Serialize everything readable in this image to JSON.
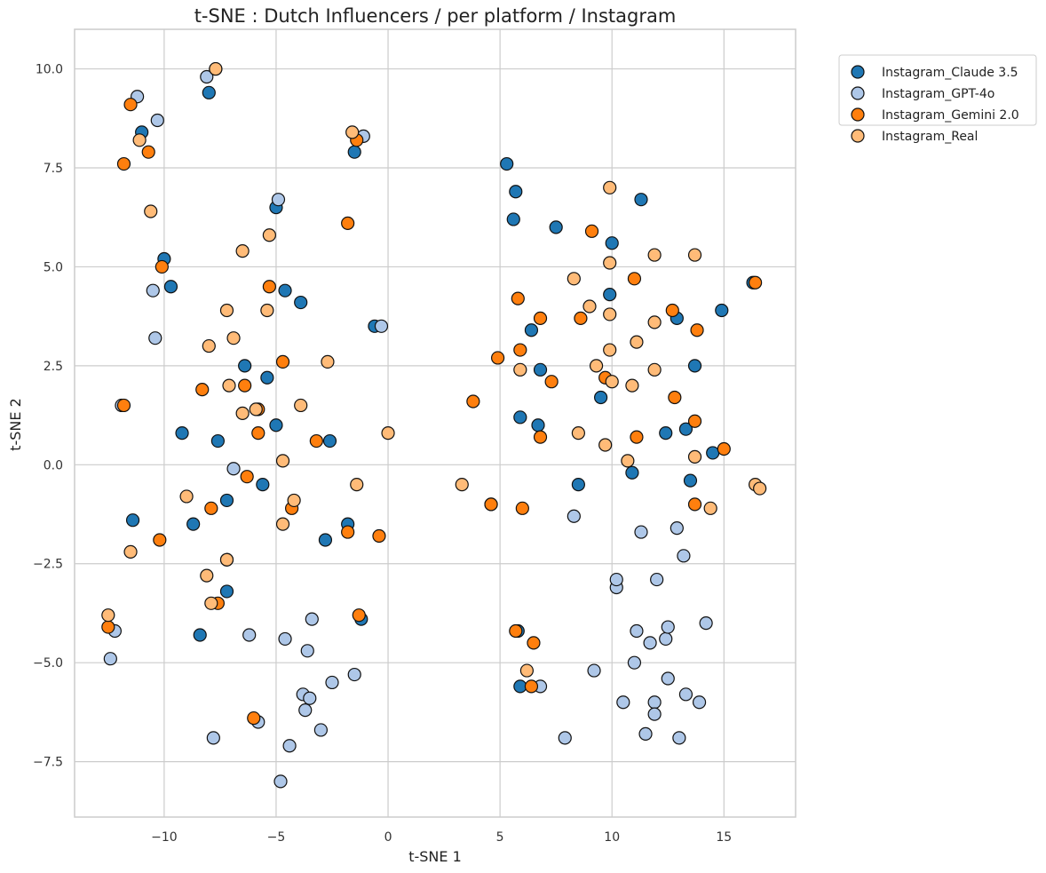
{
  "chart_data": {
    "type": "scatter",
    "title": "t-SNE : Dutch Influencers / per platform / Instagram",
    "xlabel": "t-SNE 1",
    "ylabel": "t-SNE 2",
    "xlim": [
      -14,
      18.2
    ],
    "ylim": [
      -8.9,
      11.0
    ],
    "xticks": [
      -10,
      -5,
      0,
      5,
      10,
      15
    ],
    "xtick_labels": [
      "−10",
      "−5",
      "0",
      "5",
      "10",
      "15"
    ],
    "yticks": [
      -7.5,
      -5,
      -2.5,
      0,
      2.5,
      5,
      7.5,
      10
    ],
    "ytick_labels": [
      "−7.5",
      "−5.0",
      "−2.5",
      "0.0",
      "2.5",
      "5.0",
      "7.5",
      "10.0"
    ],
    "grid": true,
    "legend_position": "outside-top-right",
    "series": [
      {
        "name": "Instagram_Claude 3.5",
        "color": "#1f77b4",
        "points": [
          [
            -8.0,
            9.4
          ],
          [
            -11.0,
            8.4
          ],
          [
            -1.5,
            7.9
          ],
          [
            -5.0,
            6.5
          ],
          [
            -10.0,
            5.2
          ],
          [
            -9.7,
            4.5
          ],
          [
            -4.6,
            4.4
          ],
          [
            -3.9,
            4.1
          ],
          [
            -0.6,
            3.5
          ],
          [
            -6.4,
            2.5
          ],
          [
            -5.4,
            2.2
          ],
          [
            -5.0,
            1.0
          ],
          [
            -9.2,
            0.8
          ],
          [
            -7.6,
            0.6
          ],
          [
            -2.6,
            0.6
          ],
          [
            -5.6,
            -0.5
          ],
          [
            -7.2,
            -0.9
          ],
          [
            -11.4,
            -1.4
          ],
          [
            -8.7,
            -1.5
          ],
          [
            -1.8,
            -1.5
          ],
          [
            -2.8,
            -1.9
          ],
          [
            -7.2,
            -3.2
          ],
          [
            -8.4,
            -4.3
          ],
          [
            -1.2,
            -3.9
          ],
          [
            5.3,
            7.6
          ],
          [
            5.7,
            6.9
          ],
          [
            11.3,
            6.7
          ],
          [
            5.6,
            6.2
          ],
          [
            7.5,
            6.0
          ],
          [
            10.0,
            5.6
          ],
          [
            16.3,
            4.6
          ],
          [
            9.9,
            4.3
          ],
          [
            14.9,
            3.9
          ],
          [
            12.9,
            3.7
          ],
          [
            6.4,
            3.4
          ],
          [
            13.7,
            2.5
          ],
          [
            6.8,
            2.4
          ],
          [
            9.5,
            1.7
          ],
          [
            5.9,
            1.2
          ],
          [
            6.7,
            1.0
          ],
          [
            13.3,
            0.9
          ],
          [
            12.4,
            0.8
          ],
          [
            14.5,
            0.3
          ],
          [
            10.9,
            -0.2
          ],
          [
            8.5,
            -0.5
          ],
          [
            13.5,
            -0.4
          ],
          [
            4.6,
            -1.0
          ],
          [
            5.8,
            -4.2
          ],
          [
            5.9,
            -5.6
          ]
        ]
      },
      {
        "name": "Instagram_GPT-4o",
        "color": "#aec7e8",
        "points": [
          [
            -8.1,
            9.8
          ],
          [
            -11.2,
            9.3
          ],
          [
            -10.3,
            8.7
          ],
          [
            -1.1,
            8.3
          ],
          [
            -4.9,
            6.7
          ],
          [
            -10.5,
            4.4
          ],
          [
            -10.4,
            3.2
          ],
          [
            -0.3,
            3.5
          ],
          [
            -11.9,
            1.5
          ],
          [
            -6.9,
            -0.1
          ],
          [
            -12.2,
            -4.2
          ],
          [
            -12.4,
            -4.9
          ],
          [
            -6.2,
            -4.3
          ],
          [
            -4.6,
            -4.4
          ],
          [
            -3.4,
            -3.9
          ],
          [
            -3.6,
            -4.7
          ],
          [
            -2.5,
            -5.5
          ],
          [
            -1.5,
            -5.3
          ],
          [
            -3.8,
            -5.8
          ],
          [
            -3.5,
            -5.9
          ],
          [
            -3.7,
            -6.2
          ],
          [
            -5.8,
            -6.5
          ],
          [
            -3.0,
            -6.7
          ],
          [
            -7.8,
            -6.9
          ],
          [
            -4.4,
            -7.1
          ],
          [
            -4.8,
            -8.0
          ],
          [
            8.3,
            -1.3
          ],
          [
            11.3,
            -1.7
          ],
          [
            12.9,
            -1.6
          ],
          [
            10.2,
            -3.1
          ],
          [
            10.2,
            -2.9
          ],
          [
            12.0,
            -2.9
          ],
          [
            13.2,
            -2.3
          ],
          [
            11.1,
            -4.2
          ],
          [
            11.7,
            -4.5
          ],
          [
            12.4,
            -4.4
          ],
          [
            12.5,
            -4.1
          ],
          [
            14.2,
            -4.0
          ],
          [
            9.2,
            -5.2
          ],
          [
            11.0,
            -5.0
          ],
          [
            12.5,
            -5.4
          ],
          [
            6.8,
            -5.6
          ],
          [
            10.5,
            -6.0
          ],
          [
            11.9,
            -6.0
          ],
          [
            13.3,
            -5.8
          ],
          [
            13.9,
            -6.0
          ],
          [
            11.9,
            -6.3
          ],
          [
            11.5,
            -6.8
          ],
          [
            7.9,
            -6.9
          ],
          [
            13.0,
            -6.9
          ]
        ]
      },
      {
        "name": "Instagram_Gemini 2.0",
        "color": "#ff7f0e",
        "points": [
          [
            -7.7,
            10.0
          ],
          [
            -11.5,
            9.1
          ],
          [
            -1.4,
            8.2
          ],
          [
            -11.8,
            7.6
          ],
          [
            -10.7,
            7.9
          ],
          [
            -1.8,
            6.1
          ],
          [
            -10.1,
            5.0
          ],
          [
            -5.3,
            4.5
          ],
          [
            -4.7,
            2.6
          ],
          [
            -8.3,
            1.9
          ],
          [
            -6.4,
            2.0
          ],
          [
            -5.8,
            1.4
          ],
          [
            -11.8,
            1.5
          ],
          [
            -5.8,
            0.8
          ],
          [
            -3.2,
            0.6
          ],
          [
            -6.3,
            -0.3
          ],
          [
            -7.9,
            -1.1
          ],
          [
            -4.3,
            -1.1
          ],
          [
            -10.2,
            -1.9
          ],
          [
            -1.8,
            -1.7
          ],
          [
            -0.4,
            -1.8
          ],
          [
            -7.2,
            -2.4
          ],
          [
            -7.6,
            -3.5
          ],
          [
            -12.5,
            -4.1
          ],
          [
            -1.3,
            -3.8
          ],
          [
            -6.0,
            -6.4
          ],
          [
            5.8,
            4.2
          ],
          [
            11.0,
            4.7
          ],
          [
            9.1,
            5.9
          ],
          [
            6.8,
            3.7
          ],
          [
            8.6,
            3.7
          ],
          [
            12.7,
            3.9
          ],
          [
            13.8,
            3.4
          ],
          [
            16.4,
            4.6
          ],
          [
            4.9,
            2.7
          ],
          [
            5.9,
            2.9
          ],
          [
            7.3,
            2.1
          ],
          [
            9.7,
            2.2
          ],
          [
            3.8,
            1.6
          ],
          [
            12.8,
            1.7
          ],
          [
            13.7,
            1.1
          ],
          [
            6.8,
            0.7
          ],
          [
            11.1,
            0.7
          ],
          [
            15.0,
            0.4
          ],
          [
            4.6,
            -1.0
          ],
          [
            6.0,
            -1.1
          ],
          [
            13.7,
            -1.0
          ],
          [
            5.7,
            -4.2
          ],
          [
            6.5,
            -4.5
          ],
          [
            6.4,
            -5.6
          ]
        ]
      },
      {
        "name": "Instagram_Real",
        "color": "#ffbb78",
        "points": [
          [
            -7.7,
            10.0
          ],
          [
            -11.1,
            8.2
          ],
          [
            -1.6,
            8.4
          ],
          [
            -10.6,
            6.4
          ],
          [
            -6.5,
            5.4
          ],
          [
            -5.3,
            5.8
          ],
          [
            -7.2,
            3.9
          ],
          [
            -5.4,
            3.9
          ],
          [
            -8.0,
            3.0
          ],
          [
            -6.9,
            3.2
          ],
          [
            -2.7,
            2.6
          ],
          [
            -7.1,
            2.0
          ],
          [
            -3.9,
            1.5
          ],
          [
            -6.5,
            1.3
          ],
          [
            -5.9,
            1.4
          ],
          [
            -4.7,
            0.1
          ],
          [
            0.0,
            0.8
          ],
          [
            -1.4,
            -0.5
          ],
          [
            -9.0,
            -0.8
          ],
          [
            -4.2,
            -0.9
          ],
          [
            -4.7,
            -1.5
          ],
          [
            -11.5,
            -2.2
          ],
          [
            -7.2,
            -2.4
          ],
          [
            -8.1,
            -2.8
          ],
          [
            -7.9,
            -3.5
          ],
          [
            -12.5,
            -3.8
          ],
          [
            9.9,
            7.0
          ],
          [
            8.3,
            4.7
          ],
          [
            9.9,
            5.1
          ],
          [
            11.9,
            5.3
          ],
          [
            13.7,
            5.3
          ],
          [
            9.0,
            4.0
          ],
          [
            9.9,
            3.8
          ],
          [
            11.9,
            3.6
          ],
          [
            11.1,
            3.1
          ],
          [
            9.9,
            2.9
          ],
          [
            9.3,
            2.5
          ],
          [
            5.9,
            2.4
          ],
          [
            11.9,
            2.4
          ],
          [
            10.0,
            2.1
          ],
          [
            10.9,
            2.0
          ],
          [
            8.5,
            0.8
          ],
          [
            9.7,
            0.5
          ],
          [
            10.7,
            0.1
          ],
          [
            13.7,
            0.2
          ],
          [
            3.3,
            -0.5
          ],
          [
            16.4,
            -0.5
          ],
          [
            16.6,
            -0.6
          ],
          [
            14.4,
            -1.1
          ],
          [
            6.2,
            -5.2
          ]
        ]
      }
    ]
  }
}
